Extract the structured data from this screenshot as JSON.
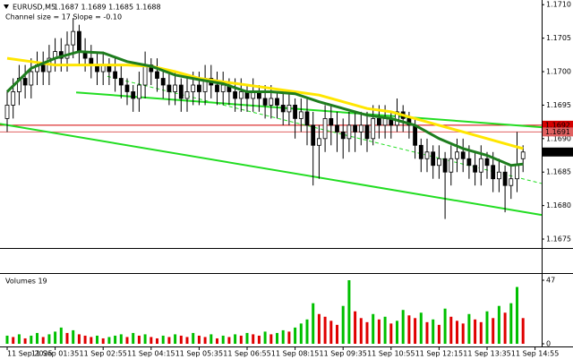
{
  "chart_data": {
    "type": "candlestick",
    "symbol": "EURUSD,M5",
    "ohlc_text": "1.1687 1.1689 1.1685 1.1688",
    "subtitle": "Channel size = 17 Slope = -0.10",
    "open": [
      1.1693,
      1.1695,
      1.1697,
      1.1699,
      1.1698,
      1.17,
      1.1701,
      1.17,
      1.1702,
      1.1703,
      1.1702,
      1.1704,
      1.1706,
      1.1703,
      1.1702,
      1.1701,
      1.17,
      1.1701,
      1.17,
      1.1699,
      1.1698,
      1.1697,
      1.1696,
      1.1698,
      1.1701,
      1.17,
      1.1699,
      1.1698,
      1.1697,
      1.1698,
      1.1696,
      1.1697,
      1.1698,
      1.1697,
      1.1699,
      1.1698,
      1.1697,
      1.1698,
      1.1697,
      1.1696,
      1.1697,
      1.1696,
      1.1697,
      1.1696,
      1.1695,
      1.1696,
      1.1695,
      1.1694,
      1.1695,
      1.1693,
      1.1694,
      1.1692,
      1.1689,
      1.169,
      1.1693,
      1.1692,
      1.1691,
      1.169,
      1.1692,
      1.1691,
      1.1692,
      1.169,
      1.1693,
      1.1692,
      1.1693,
      1.1692,
      1.1694,
      1.1693,
      1.1692,
      1.1689,
      1.1687,
      1.1688,
      1.1686,
      1.1687,
      1.1685,
      1.1687,
      1.1688,
      1.1687,
      1.1686,
      1.1685,
      1.1687,
      1.1686,
      1.1684,
      1.1685,
      1.1683,
      1.1684,
      1.1687
    ],
    "high": [
      1.1697,
      1.1699,
      1.1701,
      1.1701,
      1.1702,
      1.1703,
      1.1703,
      1.1704,
      1.1705,
      1.1705,
      1.1706,
      1.1708,
      1.1707,
      1.1705,
      1.1704,
      1.1703,
      1.1703,
      1.1702,
      1.1702,
      1.1701,
      1.1699,
      1.1698,
      1.17,
      1.1703,
      1.1702,
      1.1702,
      1.17,
      1.17,
      1.17,
      1.1699,
      1.1699,
      1.17,
      1.17,
      1.1701,
      1.1701,
      1.17,
      1.17,
      1.1699,
      1.1699,
      1.1699,
      1.1698,
      1.1699,
      1.1698,
      1.1698,
      1.1698,
      1.1697,
      1.1697,
      1.1697,
      1.1696,
      1.1696,
      1.1696,
      1.1694,
      1.1692,
      1.1695,
      1.1695,
      1.1694,
      1.1693,
      1.1694,
      1.1694,
      1.1694,
      1.1694,
      1.1695,
      1.1695,
      1.1695,
      1.1694,
      1.1696,
      1.1695,
      1.1694,
      1.1693,
      1.169,
      1.169,
      1.1689,
      1.1689,
      1.1688,
      1.1689,
      1.169,
      1.169,
      1.1689,
      1.1688,
      1.1689,
      1.1688,
      1.1688,
      1.1687,
      1.1686,
      1.1686,
      1.1691,
      1.1689
    ],
    "low": [
      1.1691,
      1.1693,
      1.1695,
      1.1696,
      1.1696,
      1.1698,
      1.1698,
      1.1698,
      1.17,
      1.17,
      1.17,
      1.1702,
      1.1701,
      1.17,
      1.1699,
      1.1698,
      1.1698,
      1.1698,
      1.1697,
      1.1696,
      1.1695,
      1.1694,
      1.1694,
      1.1696,
      1.1698,
      1.1697,
      1.1696,
      1.1695,
      1.1695,
      1.1694,
      1.1694,
      1.1695,
      1.1695,
      1.1695,
      1.1696,
      1.1695,
      1.1695,
      1.1695,
      1.1694,
      1.1694,
      1.1694,
      1.1694,
      1.1694,
      1.1693,
      1.1693,
      1.1693,
      1.1692,
      1.1692,
      1.169,
      1.1691,
      1.1689,
      1.1683,
      1.1684,
      1.1688,
      1.1689,
      1.1688,
      1.1687,
      1.1688,
      1.1688,
      1.1689,
      1.1688,
      1.1689,
      1.169,
      1.169,
      1.169,
      1.1691,
      1.1691,
      1.169,
      1.1687,
      1.1685,
      1.1685,
      1.1684,
      1.1684,
      1.1678,
      1.1683,
      1.1685,
      1.1685,
      1.1684,
      1.1683,
      1.1683,
      1.1684,
      1.1682,
      1.1682,
      1.1679,
      1.1681,
      1.1682,
      1.1685
    ],
    "close": [
      1.1695,
      1.1697,
      1.1699,
      1.1698,
      1.17,
      1.1701,
      1.17,
      1.1702,
      1.1703,
      1.1702,
      1.1704,
      1.1706,
      1.1703,
      1.1702,
      1.1701,
      1.17,
      1.1701,
      1.17,
      1.1699,
      1.1698,
      1.1697,
      1.1696,
      1.1698,
      1.1701,
      1.17,
      1.1699,
      1.1698,
      1.1697,
      1.1698,
      1.1696,
      1.1697,
      1.1698,
      1.1697,
      1.1699,
      1.1698,
      1.1697,
      1.1698,
      1.1697,
      1.1696,
      1.1697,
      1.1696,
      1.1697,
      1.1696,
      1.1695,
      1.1696,
      1.1695,
      1.1694,
      1.1695,
      1.1693,
      1.1694,
      1.1692,
      1.1689,
      1.169,
      1.1693,
      1.1692,
      1.1691,
      1.169,
      1.1692,
      1.1691,
      1.1692,
      1.169,
      1.1693,
      1.1692,
      1.1693,
      1.1692,
      1.1694,
      1.1693,
      1.1692,
      1.1689,
      1.1687,
      1.1688,
      1.1686,
      1.1687,
      1.1685,
      1.1687,
      1.1688,
      1.1687,
      1.1686,
      1.1685,
      1.1687,
      1.1686,
      1.1684,
      1.1685,
      1.1683,
      1.1684,
      1.1686,
      1.1688
    ],
    "volume_title": "Volumes 19",
    "volumes": [
      6,
      5,
      7,
      4,
      6,
      8,
      5,
      7,
      9,
      12,
      8,
      10,
      7,
      6,
      5,
      6,
      4,
      5,
      6,
      7,
      5,
      8,
      6,
      7,
      5,
      4,
      6,
      5,
      7,
      6,
      5,
      8,
      6,
      5,
      7,
      4,
      6,
      5,
      7,
      6,
      8,
      7,
      6,
      9,
      7,
      8,
      10,
      9,
      12,
      15,
      18,
      30,
      22,
      20,
      17,
      14,
      28,
      47,
      24,
      19,
      16,
      22,
      18,
      20,
      15,
      17,
      25,
      21,
      19,
      23,
      16,
      18,
      14,
      26,
      20,
      17,
      15,
      22,
      18,
      16,
      24,
      19,
      28,
      23,
      30,
      42,
      19
    ],
    "vol_ylim": [
      0,
      47
    ],
    "vol_yticks": [
      47,
      0
    ],
    "ylim": [
      1.16738,
      1.17107
    ],
    "yticks": [
      {
        "value": 1.171,
        "label": "1.1710"
      },
      1.1705,
      {
        "value": 1.17,
        "label": "1.1700"
      },
      1.1695,
      {
        "value": 1.169,
        "label": "1.1690"
      },
      1.1685,
      {
        "value": 1.168,
        "label": "1.1680"
      },
      1.1675
    ],
    "xlabels": [
      "11 Sep 2025",
      "11 Sep 01:35",
      "11 Sep 02:55",
      "11 Sep 04:15",
      "11 Sep 05:35",
      "11 Sep 06:55",
      "11 Sep 08:15",
      "11 Sep 09:35",
      "11 Sep 10:55",
      "11 Sep 12:15",
      "11 Sep 13:35",
      "11 Sep 14:55"
    ],
    "levels": [
      {
        "value": 1.1692,
        "color": "#d40000"
      },
      {
        "value": 1.1691,
        "color": "#e06060"
      },
      {
        "value": 1.1688,
        "color": "#000000"
      }
    ],
    "lines": [
      {
        "color": "#ffe600",
        "width": 3,
        "x": [
          0,
          4,
          8,
          12,
          16,
          20,
          24,
          28,
          32,
          36,
          40,
          44,
          48,
          52,
          56,
          60,
          64,
          68,
          72,
          76,
          80,
          84,
          86
        ],
        "values": [
          1.1702,
          1.17015,
          1.1701,
          1.1701,
          1.1701,
          1.1701,
          1.17008,
          1.17,
          1.1699,
          1.16985,
          1.1698,
          1.16975,
          1.1697,
          1.16965,
          1.16955,
          1.16945,
          1.1694,
          1.1693,
          1.1692,
          1.1691,
          1.169,
          1.1689,
          1.16885
        ]
      },
      {
        "color": "#1e7d1e",
        "width": 3,
        "x": [
          0,
          4,
          8,
          12,
          16,
          20,
          24,
          28,
          32,
          36,
          40,
          44,
          48,
          52,
          56,
          60,
          64,
          68,
          72,
          76,
          80,
          84,
          86
        ],
        "values": [
          1.1697,
          1.17005,
          1.1702,
          1.1703,
          1.17028,
          1.17015,
          1.17008,
          1.16995,
          1.16988,
          1.16982,
          1.1697,
          1.1697,
          1.16967,
          1.16955,
          1.16945,
          1.16935,
          1.1693,
          1.1692,
          1.169,
          1.16885,
          1.16875,
          1.1686,
          1.16862
        ]
      }
    ],
    "channel": [
      {
        "color": "#22dd22",
        "dash": false,
        "x": [
          11.5,
          89.1
        ],
        "values": [
          1.16969,
          1.16917
        ]
      },
      {
        "color": "#22dd22",
        "dash": false,
        "x": [
          -1.2,
          89.1
        ],
        "values": [
          1.16922,
          1.16786
        ]
      },
      {
        "color": "#22dd22",
        "dash": true,
        "x": [
          16.7,
          89.1
        ],
        "values": [
          1.16993,
          1.16833
        ]
      }
    ]
  }
}
